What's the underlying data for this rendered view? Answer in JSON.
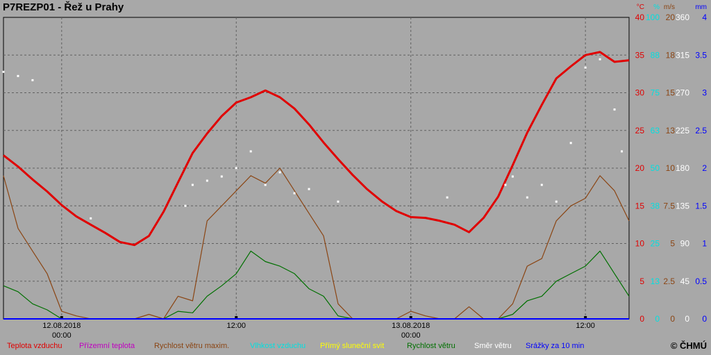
{
  "title": "P7REZP01 - Řež u Prahy",
  "copyright": "© ČHMÚ",
  "legend": [
    {
      "label": "Teplota vzduchu",
      "color": "#e00000"
    },
    {
      "label": "Přízemní teplota",
      "color": "#c000c0"
    },
    {
      "label": "Rychlost větru maxim.",
      "color": "#8b4513"
    },
    {
      "label": "Vlhkost vzduchu",
      "color": "#00e0e0"
    },
    {
      "label": "Přímý sluneční svit",
      "color": "#ffff00"
    },
    {
      "label": "Rychlost větru",
      "color": "#007000"
    },
    {
      "label": "Směr větru",
      "color": "#ffffff"
    },
    {
      "label": "Srážky za 10 min",
      "color": "#0000ff"
    }
  ],
  "chart_data": {
    "type": "line",
    "x_range": [
      "2018-08-11T20:00",
      "2018-08-13T15:00"
    ],
    "x_ticks": [
      {
        "time": "2018-08-12T00:00",
        "label": [
          "12.08.2018",
          "00:00"
        ]
      },
      {
        "time": "2018-08-12T12:00",
        "label": [
          "12:00"
        ]
      },
      {
        "time": "2018-08-13T00:00",
        "label": [
          "13.08.2018",
          "00:00"
        ]
      },
      {
        "time": "2018-08-13T12:00",
        "label": [
          "12:00"
        ]
      }
    ],
    "axes": [
      {
        "unit": "°C",
        "color": "#e00000",
        "ticks": [
          "0",
          "5",
          "10",
          "15",
          "20",
          "25",
          "30",
          "35",
          "40"
        ]
      },
      {
        "unit": "%",
        "color": "#00e0e0",
        "ticks": [
          "0",
          "13",
          "25",
          "38",
          "50",
          "63",
          "75",
          "88",
          "100"
        ]
      },
      {
        "unit": "m/s",
        "color": "#8b4513",
        "ticks": [
          "0",
          "2.5",
          "5",
          "7.5",
          "10",
          "13",
          "15",
          "18",
          "20"
        ]
      },
      {
        "unit": "°",
        "color": "#ffffff",
        "ticks": [
          "0",
          "45",
          "90",
          "135",
          "180",
          "225",
          "270",
          "315",
          "360"
        ]
      },
      {
        "unit": "mm",
        "color": "#0000ff",
        "ticks": [
          "0",
          "0.5",
          "1",
          "1.5",
          "2",
          "2.5",
          "3",
          "3.5",
          "4"
        ]
      }
    ],
    "ylim_temp": [
      0,
      40
    ],
    "grid": true,
    "series": [
      {
        "name": "Teplota vzduchu",
        "unit": "°C",
        "color": "#e00000",
        "x": [
          "2018-08-11T20:00",
          "2018-08-11T21:00",
          "2018-08-11T22:00",
          "2018-08-11T23:00",
          "2018-08-12T00:00",
          "2018-08-12T01:00",
          "2018-08-12T02:00",
          "2018-08-12T03:00",
          "2018-08-12T04:00",
          "2018-08-12T05:00",
          "2018-08-12T06:00",
          "2018-08-12T07:00",
          "2018-08-12T08:00",
          "2018-08-12T09:00",
          "2018-08-12T10:00",
          "2018-08-12T11:00",
          "2018-08-12T12:00",
          "2018-08-12T13:00",
          "2018-08-12T14:00",
          "2018-08-12T15:00",
          "2018-08-12T16:00",
          "2018-08-12T17:00",
          "2018-08-12T18:00",
          "2018-08-12T19:00",
          "2018-08-12T20:00",
          "2018-08-12T21:00",
          "2018-08-12T22:00",
          "2018-08-12T23:00",
          "2018-08-13T00:00",
          "2018-08-13T01:00",
          "2018-08-13T02:00",
          "2018-08-13T03:00",
          "2018-08-13T04:00",
          "2018-08-13T05:00",
          "2018-08-13T06:00",
          "2018-08-13T07:00",
          "2018-08-13T08:00",
          "2018-08-13T09:00",
          "2018-08-13T10:00",
          "2018-08-13T11:00",
          "2018-08-13T12:00",
          "2018-08-13T13:00",
          "2018-08-13T14:00",
          "2018-08-13T15:00"
        ],
        "values": [
          21.7,
          20.2,
          18.5,
          16.9,
          15.1,
          13.6,
          12.5,
          11.4,
          10.2,
          9.8,
          11.0,
          14.2,
          18.1,
          22.0,
          24.6,
          26.9,
          28.7,
          29.4,
          30.3,
          29.4,
          27.9,
          25.8,
          23.4,
          21.2,
          19.1,
          17.2,
          15.6,
          14.3,
          13.5,
          13.4,
          13.0,
          12.5,
          11.5,
          13.4,
          16.2,
          20.4,
          24.7,
          28.4,
          31.9,
          33.5,
          35.0,
          35.4,
          34.1,
          34.3
        ]
      },
      {
        "name": "Rychlost větru maxim.",
        "unit": "m/s",
        "color": "#8b4513",
        "x": [
          "2018-08-11T20:00",
          "2018-08-11T21:00",
          "2018-08-11T22:00",
          "2018-08-11T23:00",
          "2018-08-12T00:00",
          "2018-08-12T01:00",
          "2018-08-12T02:00",
          "2018-08-12T03:00",
          "2018-08-12T04:00",
          "2018-08-12T05:00",
          "2018-08-12T06:00",
          "2018-08-12T07:00",
          "2018-08-12T08:00",
          "2018-08-12T09:00",
          "2018-08-12T10:00",
          "2018-08-12T11:00",
          "2018-08-12T12:00",
          "2018-08-12T13:00",
          "2018-08-12T14:00",
          "2018-08-12T15:00",
          "2018-08-12T16:00",
          "2018-08-12T17:00",
          "2018-08-12T18:00",
          "2018-08-12T19:00",
          "2018-08-12T20:00",
          "2018-08-12T21:00",
          "2018-08-12T22:00",
          "2018-08-12T23:00",
          "2018-08-13T00:00",
          "2018-08-13T01:00",
          "2018-08-13T02:00",
          "2018-08-13T03:00",
          "2018-08-13T04:00",
          "2018-08-13T05:00",
          "2018-08-13T06:00",
          "2018-08-13T07:00",
          "2018-08-13T08:00",
          "2018-08-13T09:00",
          "2018-08-13T10:00",
          "2018-08-13T11:00",
          "2018-08-13T12:00",
          "2018-08-13T13:00",
          "2018-08-13T14:00",
          "2018-08-13T15:00"
        ],
        "values": [
          9.5,
          6.0,
          4.5,
          3.0,
          0.5,
          0.2,
          0,
          0,
          0,
          0,
          0.3,
          0,
          1.5,
          1.2,
          6.5,
          7.5,
          8.5,
          9.5,
          9.0,
          10.0,
          8.5,
          7.0,
          5.5,
          1.0,
          0,
          0,
          0,
          0,
          0.5,
          0.2,
          0,
          0,
          0.8,
          0,
          0,
          1.0,
          3.5,
          4.0,
          6.5,
          7.5,
          8.0,
          9.5,
          8.5,
          6.5
        ]
      },
      {
        "name": "Rychlost větru",
        "unit": "m/s",
        "color": "#007000",
        "x": [
          "2018-08-11T20:00",
          "2018-08-11T21:00",
          "2018-08-11T22:00",
          "2018-08-11T23:00",
          "2018-08-12T00:00",
          "2018-08-12T01:00",
          "2018-08-12T02:00",
          "2018-08-12T03:00",
          "2018-08-12T04:00",
          "2018-08-12T05:00",
          "2018-08-12T06:00",
          "2018-08-12T07:00",
          "2018-08-12T08:00",
          "2018-08-12T09:00",
          "2018-08-12T10:00",
          "2018-08-12T11:00",
          "2018-08-12T12:00",
          "2018-08-12T13:00",
          "2018-08-12T14:00",
          "2018-08-12T15:00",
          "2018-08-12T16:00",
          "2018-08-12T17:00",
          "2018-08-12T18:00",
          "2018-08-12T19:00",
          "2018-08-12T20:00",
          "2018-08-12T21:00",
          "2018-08-12T22:00",
          "2018-08-12T23:00",
          "2018-08-13T00:00",
          "2018-08-13T01:00",
          "2018-08-13T02:00",
          "2018-08-13T03:00",
          "2018-08-13T04:00",
          "2018-08-13T05:00",
          "2018-08-13T06:00",
          "2018-08-13T07:00",
          "2018-08-13T08:00",
          "2018-08-13T09:00",
          "2018-08-13T10:00",
          "2018-08-13T11:00",
          "2018-08-13T12:00",
          "2018-08-13T13:00",
          "2018-08-13T14:00",
          "2018-08-13T15:00"
        ],
        "values": [
          2.2,
          1.8,
          1.0,
          0.6,
          0,
          0,
          0,
          0,
          0,
          0,
          0,
          0,
          0.5,
          0.4,
          1.5,
          2.2,
          3.0,
          4.5,
          3.8,
          3.5,
          3.0,
          2.0,
          1.5,
          0.2,
          0,
          0,
          0,
          0,
          0,
          0,
          0,
          0,
          0,
          0,
          0,
          0.3,
          1.2,
          1.5,
          2.5,
          3.0,
          3.5,
          4.5,
          3.0,
          1.5
        ]
      },
      {
        "name": "Směr větru",
        "unit": "°",
        "color": "#ffffff",
        "mode": "markers",
        "x": [
          "2018-08-11T20:00",
          "2018-08-11T21:00",
          "2018-08-11T22:00",
          "2018-08-12T02:00",
          "2018-08-12T08:30",
          "2018-08-12T09:00",
          "2018-08-12T10:00",
          "2018-08-12T11:00",
          "2018-08-12T12:00",
          "2018-08-12T13:00",
          "2018-08-12T14:00",
          "2018-08-12T15:00",
          "2018-08-12T16:00",
          "2018-08-12T17:00",
          "2018-08-12T19:00",
          "2018-08-13T02:30",
          "2018-08-13T06:30",
          "2018-08-13T07:00",
          "2018-08-13T08:00",
          "2018-08-13T09:00",
          "2018-08-13T10:00",
          "2018-08-13T11:00",
          "2018-08-13T12:00",
          "2018-08-13T13:00",
          "2018-08-13T14:00",
          "2018-08-13T14:30"
        ],
        "values": [
          295,
          290,
          285,
          120,
          135,
          160,
          165,
          170,
          180,
          200,
          160,
          175,
          150,
          155,
          140,
          145,
          160,
          170,
          145,
          160,
          140,
          210,
          300,
          310,
          250,
          200
        ]
      },
      {
        "name": "Srážky za 10 min",
        "unit": "mm",
        "color": "#0000ff",
        "x": [
          "2018-08-11T20:00",
          "2018-08-13T15:00"
        ],
        "values": [
          0,
          0
        ]
      }
    ]
  }
}
